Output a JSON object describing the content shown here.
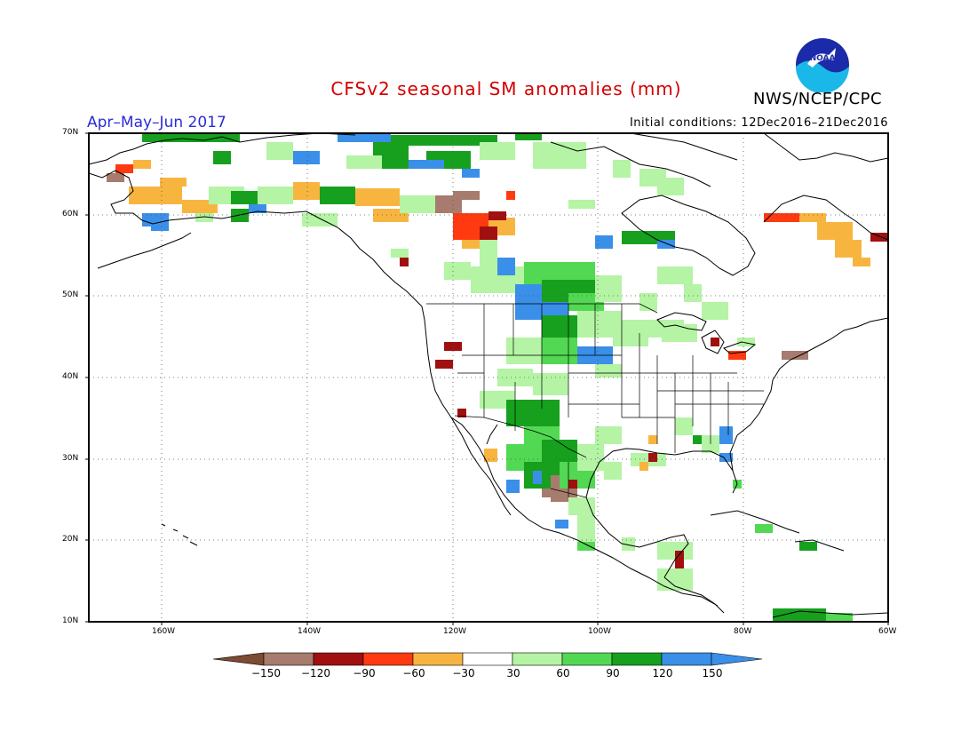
{
  "title": "CFSv2 seasonal SM anomalies (mm)",
  "period": "Apr–May–Jun 2017",
  "initial_conditions": "Initial conditions: 12Dec2016–21Dec2016",
  "organization": "NWS/NCEP/CPC",
  "logo_text": "NOAA",
  "lat_ticks": [
    "70N",
    "60N",
    "50N",
    "40N",
    "30N",
    "20N",
    "10N"
  ],
  "lon_ticks": [
    "160W",
    "140W",
    "120W",
    "100W",
    "80W",
    "60W"
  ],
  "colorbar": {
    "labels": [
      "−150",
      "−120",
      "−90",
      "−60",
      "−30",
      "30",
      "60",
      "90",
      "120",
      "150"
    ],
    "colors": [
      "#7b4b32",
      "#a77b6d",
      "#a01010",
      "#ff3a10",
      "#f7b540",
      "#ffffff",
      "#b4f4a4",
      "#52d852",
      "#16a01e",
      "#3a8fe8",
      "#3a8fe8"
    ]
  },
  "map": {
    "lon_range": [
      -170,
      -60
    ],
    "lat_range": [
      10,
      70
    ],
    "land_color": "#ffffff",
    "ocean_color": "#ffffff"
  }
}
